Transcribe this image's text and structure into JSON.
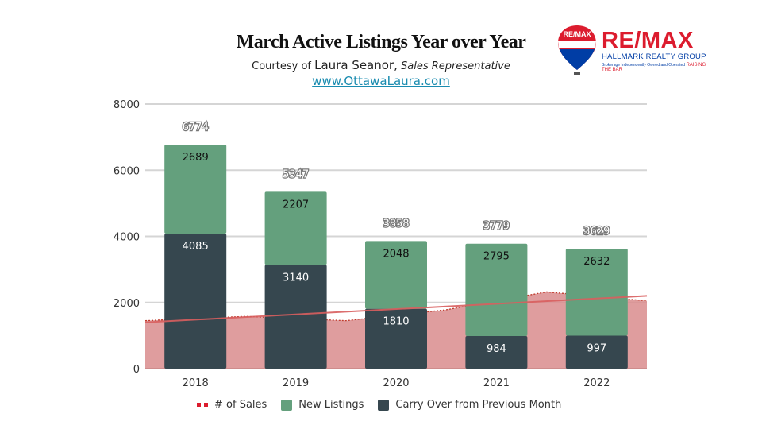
{
  "header": {
    "title": "March Active Listings Year over Year",
    "subtitle_prefix": "Courtesy of ",
    "subtitle_name": "Laura Seanor,",
    "subtitle_role": "Sales Representative",
    "website": "www.OttawaLaura.com"
  },
  "logo": {
    "balloon_text": "RE/MAX",
    "brand": "RE/MAX",
    "brokerage": "HALLMARK REALTY GROUP",
    "tagline": "Brokerage Independently Owned and Operated",
    "slogan": "RAISING THE BAR"
  },
  "colors": {
    "new_listings": "#64a07d",
    "carry_over": "#36474f",
    "sales": "#d98c8d",
    "trend": "#d95f5f",
    "brand_red": "#dc1c2e",
    "brand_blue": "#003da5"
  },
  "chart_data": {
    "type": "bar",
    "stacked": true,
    "categories": [
      "2018",
      "2019",
      "2020",
      "2021",
      "2022"
    ],
    "series": [
      {
        "name": "Carry Over from Previous Month",
        "values": [
          4085,
          3140,
          1810,
          984,
          997
        ]
      },
      {
        "name": "New Listings",
        "values": [
          2689,
          2207,
          2048,
          2795,
          2632
        ]
      }
    ],
    "totals": [
      6774,
      5347,
      3858,
      3779,
      3629
    ],
    "area_series": {
      "name": "# of Sales",
      "values": [
        1450,
        1580,
        1450,
        1780,
        2320,
        2050
      ]
    },
    "trendline": {
      "start": 1400,
      "end": 2200
    },
    "ylim": [
      0,
      8000
    ],
    "yticks": [
      0,
      2000,
      4000,
      6000,
      8000
    ],
    "grid": true,
    "legend_position": "bottom",
    "legend": [
      "# of Sales",
      "New Listings",
      "Carry Over from Previous Month"
    ]
  }
}
